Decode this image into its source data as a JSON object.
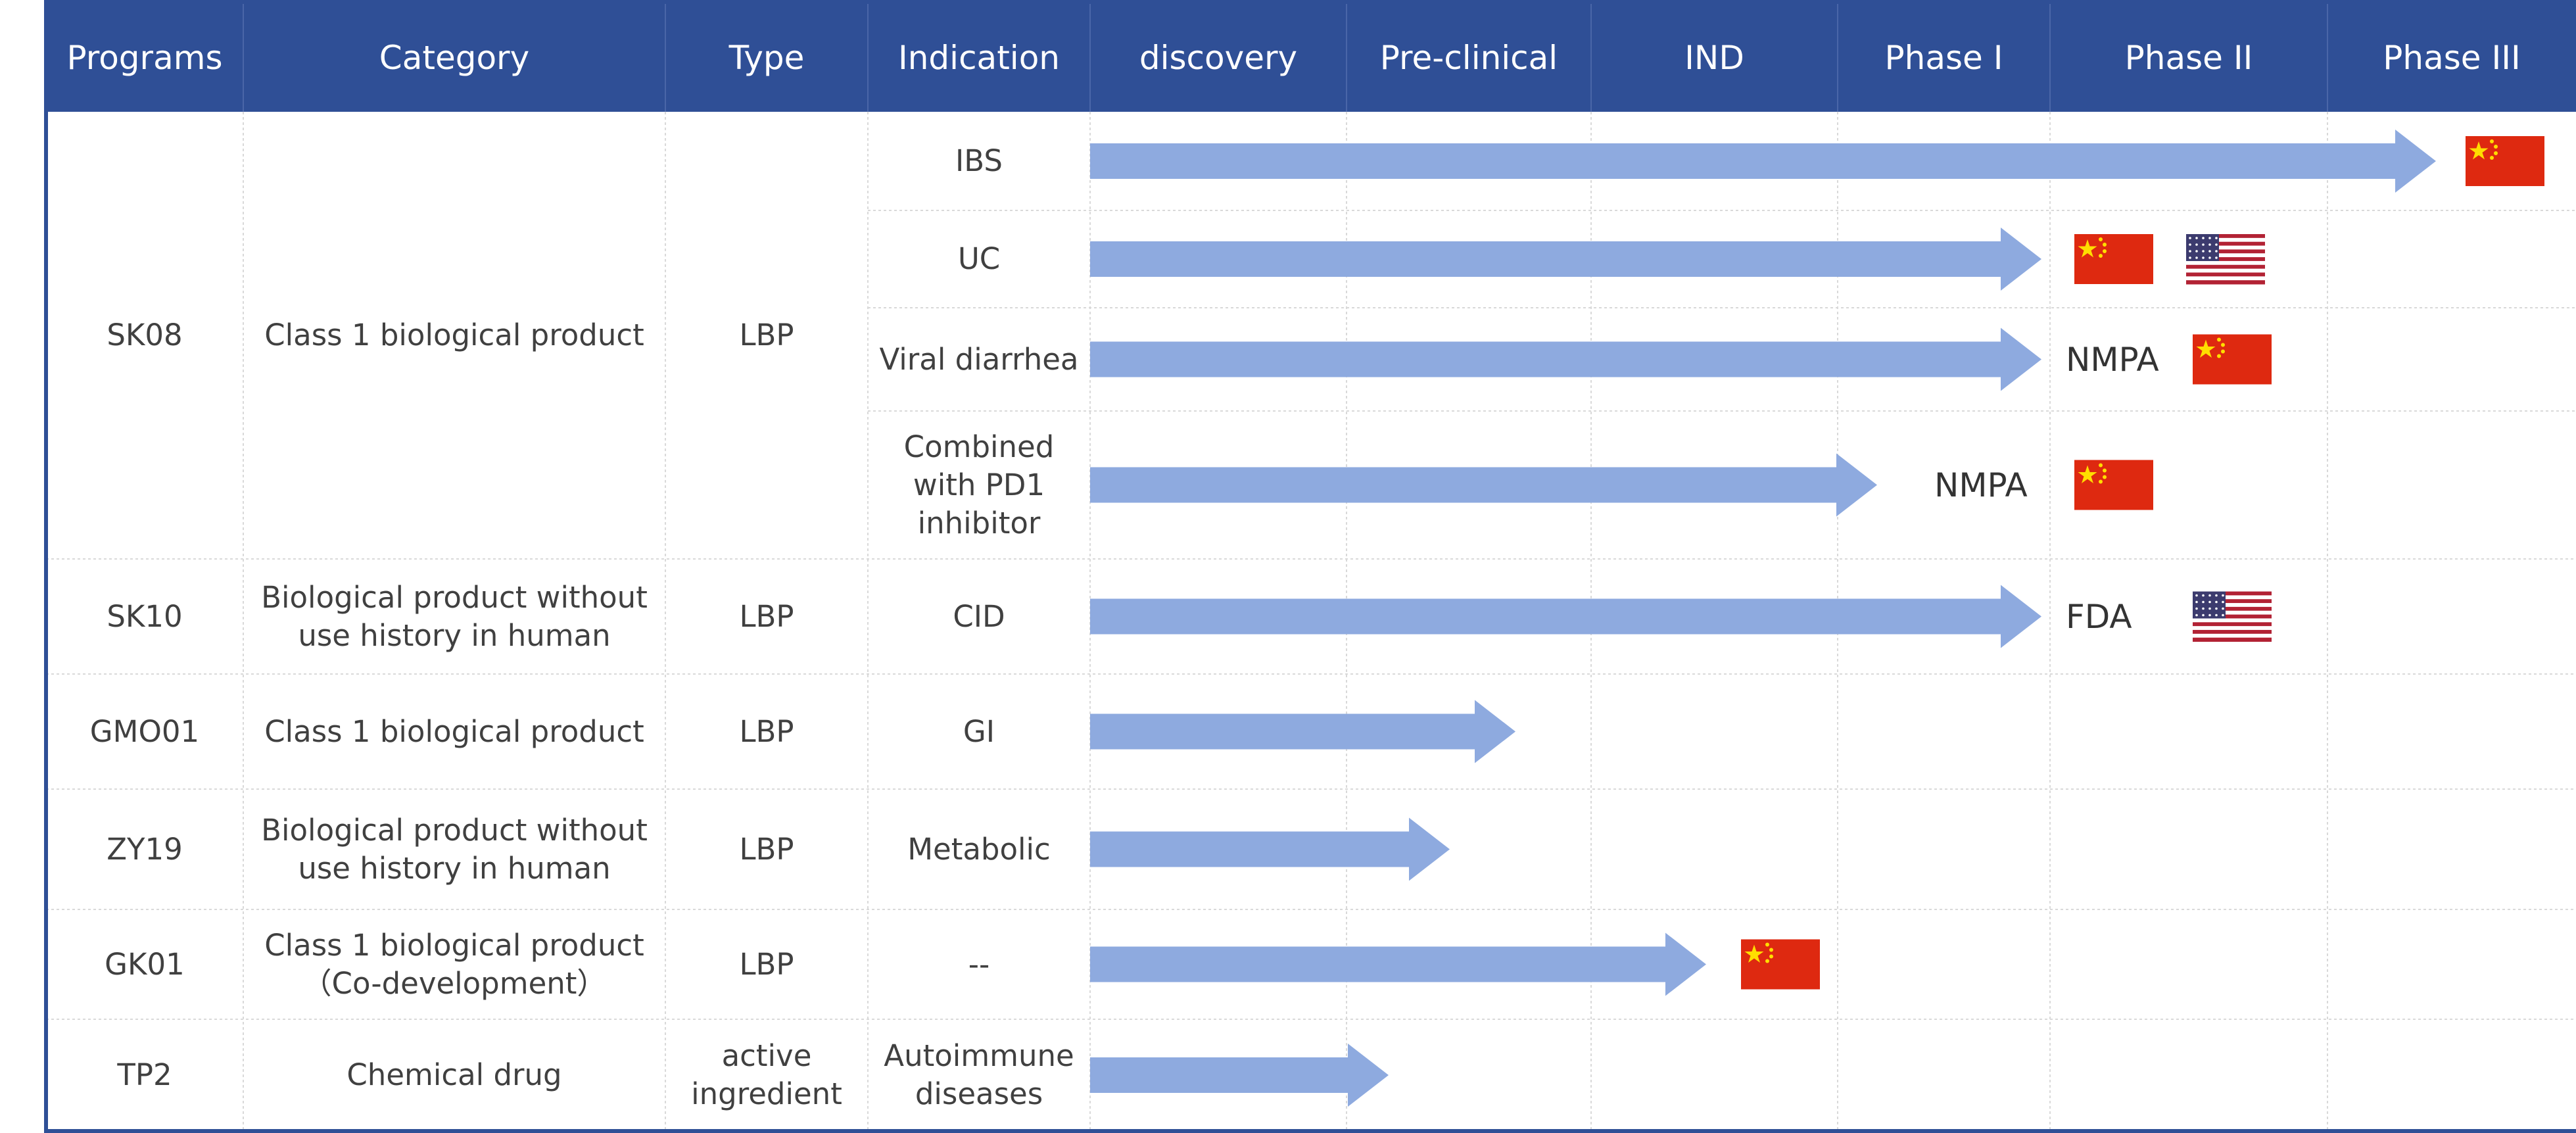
{
  "table": {
    "headers": [
      "Programs",
      "Category",
      "Type",
      "Indication",
      "discovery",
      "Pre-clinical",
      "IND",
      "Phase I",
      "Phase II",
      "Phase III"
    ],
    "programs": [
      {
        "program": "SK08",
        "category": "Class 1 biological product",
        "type": "LBP",
        "indications": [
          {
            "name": "IBS"
          },
          {
            "name": "UC"
          },
          {
            "name": "Viral diarrhea",
            "label": "NMPA"
          },
          {
            "name": "Combined\nwith PD1\ninhibitor",
            "label": "NMPA"
          }
        ]
      },
      {
        "program": "SK10",
        "category": "Biological product without\nuse history in human",
        "type": "LBP",
        "indications": [
          {
            "name": "CID",
            "label": "FDA"
          }
        ]
      },
      {
        "program": "GMO01",
        "category": "Class 1 biological product",
        "type": "LBP",
        "indications": [
          {
            "name": "GI"
          }
        ]
      },
      {
        "program": "ZY19",
        "category": "Biological product without\nuse history in human",
        "type": "LBP",
        "indications": [
          {
            "name": "Metabolic"
          }
        ]
      },
      {
        "program": "GK01",
        "category": "Class 1 biological product\n（Co-development）",
        "type": "LBP",
        "indications": [
          {
            "name": "--"
          }
        ]
      },
      {
        "program": "TP2",
        "category": "Chemical drug",
        "type": "active\ningredient",
        "indications": [
          {
            "name": "Autoimmune\ndiseases"
          }
        ]
      }
    ]
  }
}
